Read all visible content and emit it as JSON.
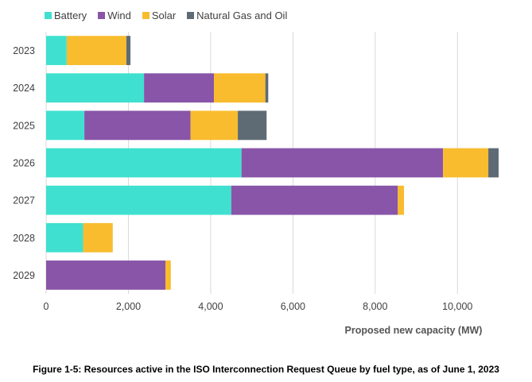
{
  "chart_data": {
    "type": "bar",
    "orientation": "horizontal",
    "stacked": true,
    "categories": [
      "2023",
      "2024",
      "2025",
      "2026",
      "2027",
      "2028",
      "2029"
    ],
    "series": [
      {
        "name": "Battery",
        "color": "#40E0D0",
        "values": [
          500,
          2380,
          930,
          4750,
          4500,
          900,
          0
        ]
      },
      {
        "name": "Wind",
        "color": "#8855A8",
        "values": [
          0,
          1700,
          2580,
          4900,
          4050,
          0,
          2900
        ]
      },
      {
        "name": "Solar",
        "color": "#F8BC2E",
        "values": [
          1450,
          1250,
          1150,
          1100,
          150,
          720,
          130
        ]
      },
      {
        "name": "Natural Gas and Oil",
        "color": "#5E6B74",
        "values": [
          100,
          70,
          700,
          250,
          0,
          0,
          0
        ]
      }
    ],
    "xlim": [
      0,
      11000
    ],
    "xticks": [
      0,
      2000,
      4000,
      6000,
      8000,
      10000
    ],
    "xtick_labels": [
      "0",
      "2,000",
      "4,000",
      "6,000",
      "8,000",
      "10,000"
    ],
    "xlabel": "Proposed new capacity (MW)",
    "ylabel": "",
    "grid": "vertical",
    "legend_position": "top-left",
    "caption": "Figure 1-5: Resources active in the ISO Interconnection Request Queue by fuel type, as of June 1, 2023"
  }
}
